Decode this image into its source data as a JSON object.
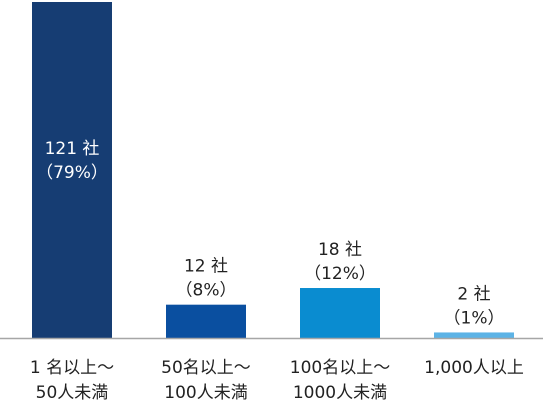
{
  "chart_data": {
    "type": "bar",
    "categories": [
      [
        "1 名以上～",
        "50人未満"
      ],
      [
        "50名以上～",
        "100人未満"
      ],
      [
        "100名以上～",
        "1000人未満"
      ],
      [
        "1,000人以上"
      ]
    ],
    "values": [
      121,
      12,
      18,
      2
    ],
    "value_labels": [
      "121 社",
      "12 社",
      "18 社",
      "2 社"
    ],
    "percent_labels": [
      "（79%）",
      "（8%）",
      "（12%）",
      "（1%）"
    ],
    "colors": [
      "#163d73",
      "#0a4fa0",
      "#0a8cd0",
      "#5cb3e6"
    ],
    "title": "",
    "xlabel": "",
    "ylabel": "",
    "ylim": [
      0,
      121
    ],
    "grid": false,
    "legend": "none",
    "baseline_color": "#a6a6a6"
  }
}
